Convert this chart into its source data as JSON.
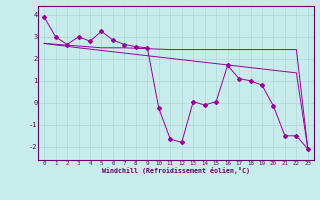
{
  "line1_x": [
    0,
    1,
    2,
    3,
    4,
    5,
    6,
    7,
    8,
    9,
    10,
    11,
    12,
    13,
    14,
    15,
    16,
    17,
    18,
    19,
    20,
    21,
    22,
    23
  ],
  "line1_y": [
    3.9,
    3.0,
    2.65,
    3.0,
    2.8,
    3.25,
    2.85,
    2.65,
    2.55,
    2.5,
    -0.25,
    -1.65,
    -1.8,
    0.05,
    -0.1,
    0.05,
    1.7,
    1.1,
    1.0,
    0.8,
    -0.15,
    -1.5,
    -1.5,
    -2.1
  ],
  "line2_x": [
    0,
    1,
    2,
    3,
    4,
    5,
    6,
    7,
    8,
    9,
    10,
    11,
    12,
    13,
    14,
    15,
    16,
    17,
    18,
    19,
    20,
    21,
    22,
    23
  ],
  "line2_y": [
    2.7,
    2.63,
    2.57,
    2.5,
    2.44,
    2.38,
    2.32,
    2.26,
    2.2,
    2.14,
    2.08,
    2.02,
    1.96,
    1.9,
    1.84,
    1.78,
    1.72,
    1.66,
    1.6,
    1.54,
    1.48,
    1.42,
    1.36,
    -2.1
  ],
  "line3_x": [
    0,
    5,
    6,
    7,
    8,
    9,
    10,
    11,
    12,
    13,
    14,
    15,
    16,
    17,
    18,
    19,
    20,
    21,
    22,
    23
  ],
  "line3_y": [
    2.7,
    2.5,
    2.5,
    2.5,
    2.48,
    2.46,
    2.44,
    2.42,
    2.42,
    2.42,
    2.42,
    2.42,
    2.42,
    2.42,
    2.42,
    2.42,
    2.42,
    2.42,
    2.42,
    -2.1
  ],
  "line_color": "#990099",
  "bg_color": "#c8ecec",
  "grid_color": "#b0d8d8",
  "axis_color": "#660066",
  "spine_color": "#660066",
  "xlabel": "Windchill (Refroidissement éolien,°C)",
  "ylim": [
    -2.6,
    4.4
  ],
  "xlim": [
    -0.5,
    23.5
  ],
  "xticks": [
    0,
    1,
    2,
    3,
    4,
    5,
    6,
    7,
    8,
    9,
    10,
    11,
    12,
    13,
    14,
    15,
    16,
    17,
    18,
    19,
    20,
    21,
    22,
    23
  ],
  "yticks": [
    -2,
    -1,
    0,
    1,
    2,
    3,
    4
  ]
}
